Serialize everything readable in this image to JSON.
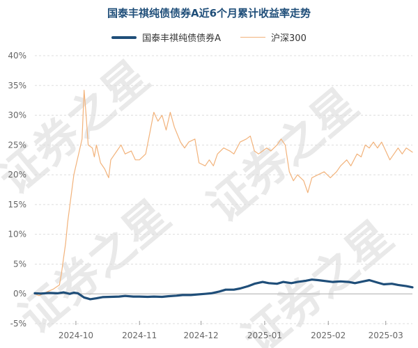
{
  "chart_data": {
    "type": "line",
    "title": "国泰丰祺纯债债券A近6个月累计收益率走势",
    "watermark": "证券之星",
    "y_unit": "%",
    "ylim": [
      -5,
      40
    ],
    "yticks": [
      -5,
      0,
      5,
      10,
      15,
      20,
      25,
      30,
      35,
      40
    ],
    "ytick_labels": [
      "-5%",
      "0%",
      "5%",
      "10%",
      "15%",
      "20%",
      "25%",
      "30%",
      "35%",
      "40%"
    ],
    "xlim": [
      "2024-09-11",
      "2025-03-14"
    ],
    "xticks": [
      "2024-10-01",
      "2024-11-01",
      "2024-12-01",
      "2025-01-01",
      "2025-02-01",
      "2025-03-01"
    ],
    "xtick_labels": [
      "2024-10",
      "2024-11",
      "2024-12",
      "2025-01",
      "2025-02",
      "2025-03"
    ],
    "grid": true,
    "legend_position": "top",
    "colors": {
      "fund": "#1f4e79",
      "index": "#f2b27a",
      "grid": "#dddddd",
      "zero": "#bbbbbb"
    },
    "series": [
      {
        "name": "国泰丰祺纯债债券A",
        "points": [
          [
            "2024-09-11",
            0.1
          ],
          [
            "2024-09-14",
            0.05
          ],
          [
            "2024-09-18",
            0.15
          ],
          [
            "2024-09-22",
            0.1
          ],
          [
            "2024-09-25",
            0.25
          ],
          [
            "2024-09-28",
            0.0
          ],
          [
            "2024-09-30",
            0.2
          ],
          [
            "2024-10-02",
            0.1
          ],
          [
            "2024-10-05",
            -0.6
          ],
          [
            "2024-10-08",
            -0.9
          ],
          [
            "2024-10-11",
            -0.75
          ],
          [
            "2024-10-14",
            -0.55
          ],
          [
            "2024-10-18",
            -0.5
          ],
          [
            "2024-10-22",
            -0.45
          ],
          [
            "2024-10-25",
            -0.35
          ],
          [
            "2024-10-29",
            -0.45
          ],
          [
            "2024-11-01",
            -0.45
          ],
          [
            "2024-11-05",
            -0.5
          ],
          [
            "2024-11-08",
            -0.45
          ],
          [
            "2024-11-12",
            -0.5
          ],
          [
            "2024-11-15",
            -0.4
          ],
          [
            "2024-11-19",
            -0.3
          ],
          [
            "2024-11-22",
            -0.2
          ],
          [
            "2024-11-26",
            -0.2
          ],
          [
            "2024-11-29",
            -0.1
          ],
          [
            "2024-12-03",
            0.0
          ],
          [
            "2024-12-06",
            0.1
          ],
          [
            "2024-12-10",
            0.4
          ],
          [
            "2024-12-13",
            0.7
          ],
          [
            "2024-12-17",
            0.7
          ],
          [
            "2024-12-20",
            0.9
          ],
          [
            "2024-12-24",
            1.3
          ],
          [
            "2024-12-27",
            1.7
          ],
          [
            "2024-12-31",
            2.0
          ],
          [
            "2025-01-03",
            1.8
          ],
          [
            "2025-01-07",
            1.7
          ],
          [
            "2025-01-10",
            2.0
          ],
          [
            "2025-01-14",
            1.8
          ],
          [
            "2025-01-17",
            2.0
          ],
          [
            "2025-01-21",
            2.2
          ],
          [
            "2025-01-24",
            2.4
          ],
          [
            "2025-01-27",
            2.3
          ],
          [
            "2025-02-03",
            2.0
          ],
          [
            "2025-02-07",
            2.1
          ],
          [
            "2025-02-11",
            2.0
          ],
          [
            "2025-02-14",
            1.8
          ],
          [
            "2025-02-18",
            2.1
          ],
          [
            "2025-02-21",
            2.3
          ],
          [
            "2025-02-25",
            1.9
          ],
          [
            "2025-02-28",
            1.6
          ],
          [
            "2025-03-04",
            1.7
          ],
          [
            "2025-03-07",
            1.5
          ],
          [
            "2025-03-11",
            1.3
          ],
          [
            "2025-03-14",
            1.1
          ]
        ]
      },
      {
        "name": "沪深300",
        "points": [
          [
            "2024-09-11",
            0.0
          ],
          [
            "2024-09-13",
            -0.3
          ],
          [
            "2024-09-18",
            0.5
          ],
          [
            "2024-09-20",
            0.8
          ],
          [
            "2024-09-23",
            1.5
          ],
          [
            "2024-09-24",
            3.5
          ],
          [
            "2024-09-25",
            6.0
          ],
          [
            "2024-09-26",
            8.5
          ],
          [
            "2024-09-27",
            12.0
          ],
          [
            "2024-09-30",
            20.0
          ],
          [
            "2024-10-04",
            26.0
          ],
          [
            "2024-10-05",
            34.2
          ],
          [
            "2024-10-06",
            30.0
          ],
          [
            "2024-10-07",
            25.0
          ],
          [
            "2024-10-09",
            24.5
          ],
          [
            "2024-10-10",
            23.0
          ],
          [
            "2024-10-11",
            25.0
          ],
          [
            "2024-10-13",
            22.0
          ],
          [
            "2024-10-15",
            21.0
          ],
          [
            "2024-10-17",
            19.5
          ],
          [
            "2024-10-18",
            22.5
          ],
          [
            "2024-10-21",
            24.0
          ],
          [
            "2024-10-23",
            25.0
          ],
          [
            "2024-10-25",
            23.5
          ],
          [
            "2024-10-28",
            24.0
          ],
          [
            "2024-10-30",
            22.5
          ],
          [
            "2024-11-01",
            22.5
          ],
          [
            "2024-11-04",
            23.5
          ],
          [
            "2024-11-06",
            27.0
          ],
          [
            "2024-11-08",
            30.5
          ],
          [
            "2024-11-10",
            29.0
          ],
          [
            "2024-11-12",
            30.0
          ],
          [
            "2024-11-14",
            27.5
          ],
          [
            "2024-11-16",
            30.5
          ],
          [
            "2024-11-18",
            28.0
          ],
          [
            "2024-11-21",
            25.5
          ],
          [
            "2024-11-23",
            24.5
          ],
          [
            "2024-11-25",
            25.5
          ],
          [
            "2024-11-28",
            26.0
          ],
          [
            "2024-11-30",
            22.0
          ],
          [
            "2024-12-03",
            21.5
          ],
          [
            "2024-12-05",
            22.5
          ],
          [
            "2024-12-07",
            21.5
          ],
          [
            "2024-12-09",
            23.5
          ],
          [
            "2024-12-12",
            24.5
          ],
          [
            "2024-12-15",
            24.0
          ],
          [
            "2024-12-17",
            23.5
          ],
          [
            "2024-12-20",
            25.5
          ],
          [
            "2024-12-23",
            26.0
          ],
          [
            "2024-12-25",
            26.5
          ],
          [
            "2024-12-27",
            24.0
          ],
          [
            "2024-12-29",
            23.5
          ],
          [
            "2025-01-02",
            24.5
          ],
          [
            "2025-01-04",
            24.0
          ],
          [
            "2025-01-07",
            25.0
          ],
          [
            "2025-01-09",
            26.0
          ],
          [
            "2025-01-11",
            25.0
          ],
          [
            "2025-01-13",
            20.5
          ],
          [
            "2025-01-15",
            19.0
          ],
          [
            "2025-01-17",
            20.0
          ],
          [
            "2025-01-20",
            19.0
          ],
          [
            "2025-01-22",
            17.0
          ],
          [
            "2025-01-24",
            19.5
          ],
          [
            "2025-01-27",
            20.0
          ],
          [
            "2025-01-30",
            20.5
          ],
          [
            "2025-02-02",
            19.5
          ],
          [
            "2025-02-05",
            20.5
          ],
          [
            "2025-02-07",
            21.5
          ],
          [
            "2025-02-10",
            22.5
          ],
          [
            "2025-02-12",
            21.5
          ],
          [
            "2025-02-15",
            23.5
          ],
          [
            "2025-02-17",
            23.0
          ],
          [
            "2025-02-19",
            25.0
          ],
          [
            "2025-02-21",
            24.5
          ],
          [
            "2025-02-23",
            25.5
          ],
          [
            "2025-02-25",
            24.5
          ],
          [
            "2025-02-27",
            25.5
          ],
          [
            "2025-03-01",
            24.0
          ],
          [
            "2025-03-03",
            22.5
          ],
          [
            "2025-03-05",
            23.5
          ],
          [
            "2025-03-07",
            24.5
          ],
          [
            "2025-03-09",
            23.5
          ],
          [
            "2025-03-11",
            24.5
          ],
          [
            "2025-03-14",
            23.8
          ]
        ]
      }
    ]
  }
}
